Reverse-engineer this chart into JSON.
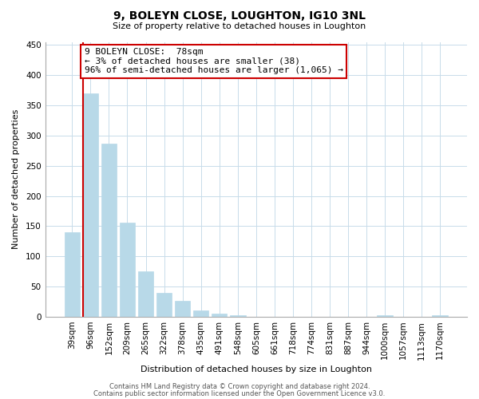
{
  "title": "9, BOLEYN CLOSE, LOUGHTON, IG10 3NL",
  "subtitle": "Size of property relative to detached houses in Loughton",
  "xlabel": "Distribution of detached houses by size in Loughton",
  "ylabel": "Number of detached properties",
  "bar_labels": [
    "39sqm",
    "96sqm",
    "152sqm",
    "209sqm",
    "265sqm",
    "322sqm",
    "378sqm",
    "435sqm",
    "491sqm",
    "548sqm",
    "605sqm",
    "661sqm",
    "718sqm",
    "774sqm",
    "831sqm",
    "887sqm",
    "944sqm",
    "1000sqm",
    "1057sqm",
    "1113sqm",
    "1170sqm"
  ],
  "bar_values": [
    140,
    370,
    287,
    156,
    75,
    39,
    26,
    11,
    5,
    2,
    0,
    0,
    0,
    0,
    0,
    0,
    0,
    3,
    0,
    0,
    2
  ],
  "bar_color": "#b8d9e8",
  "redline_bar_index": 1,
  "annotation_line1": "9 BOLEYN CLOSE:  78sqm",
  "annotation_line2": "← 3% of detached houses are smaller (38)",
  "annotation_line3": "96% of semi-detached houses are larger (1,065) →",
  "annotation_box_facecolor": "#ffffff",
  "annotation_box_edgecolor": "#cc0000",
  "ylim": [
    0,
    455
  ],
  "yticks": [
    0,
    50,
    100,
    150,
    200,
    250,
    300,
    350,
    400,
    450
  ],
  "footer_line1": "Contains HM Land Registry data © Crown copyright and database right 2024.",
  "footer_line2": "Contains public sector information licensed under the Open Government Licence v3.0.",
  "bg_color": "#ffffff",
  "grid_color": "#c8dcea",
  "redline_color": "#cc0000",
  "title_fontsize": 10,
  "subtitle_fontsize": 8,
  "xlabel_fontsize": 8,
  "ylabel_fontsize": 8,
  "tick_fontsize": 7.5,
  "annotation_fontsize": 8
}
